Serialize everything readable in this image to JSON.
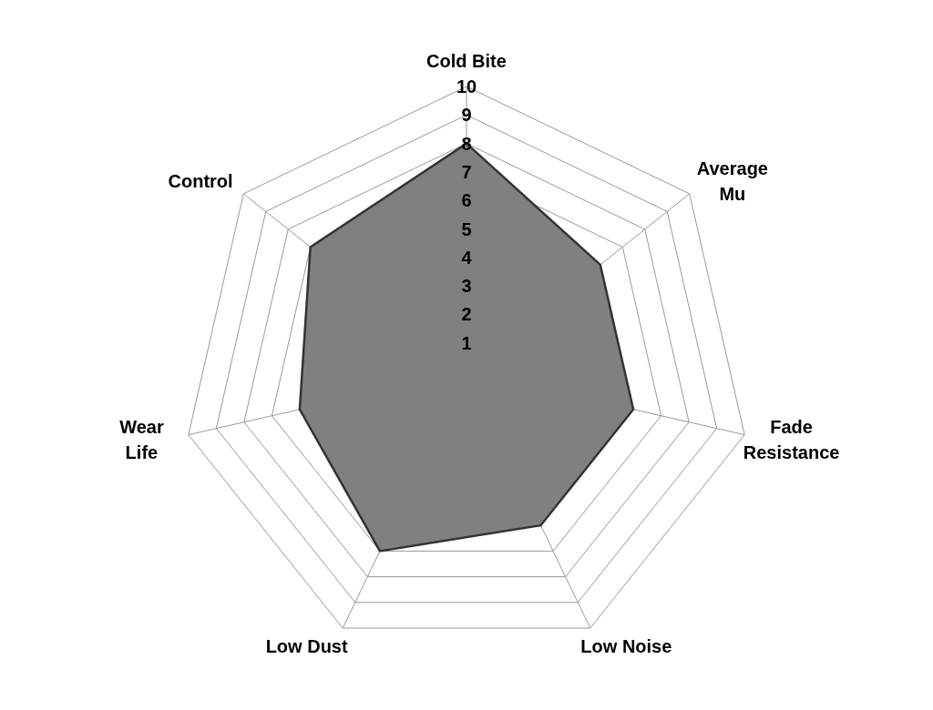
{
  "chart_data": {
    "type": "radar",
    "categories": [
      "Cold Bite",
      "Average\nMu",
      "Fade\nResistance",
      "Low Noise",
      "Low Dust",
      "Wear\nLife",
      "Control"
    ],
    "series": [
      {
        "color": "#808080",
        "values": [
          8,
          6,
          6,
          6,
          7,
          6,
          7
        ]
      }
    ],
    "ylim": [
      0,
      10
    ],
    "yticks": [
      1,
      2,
      3,
      4,
      5,
      6,
      7,
      8,
      9,
      10
    ],
    "grid": true
  }
}
